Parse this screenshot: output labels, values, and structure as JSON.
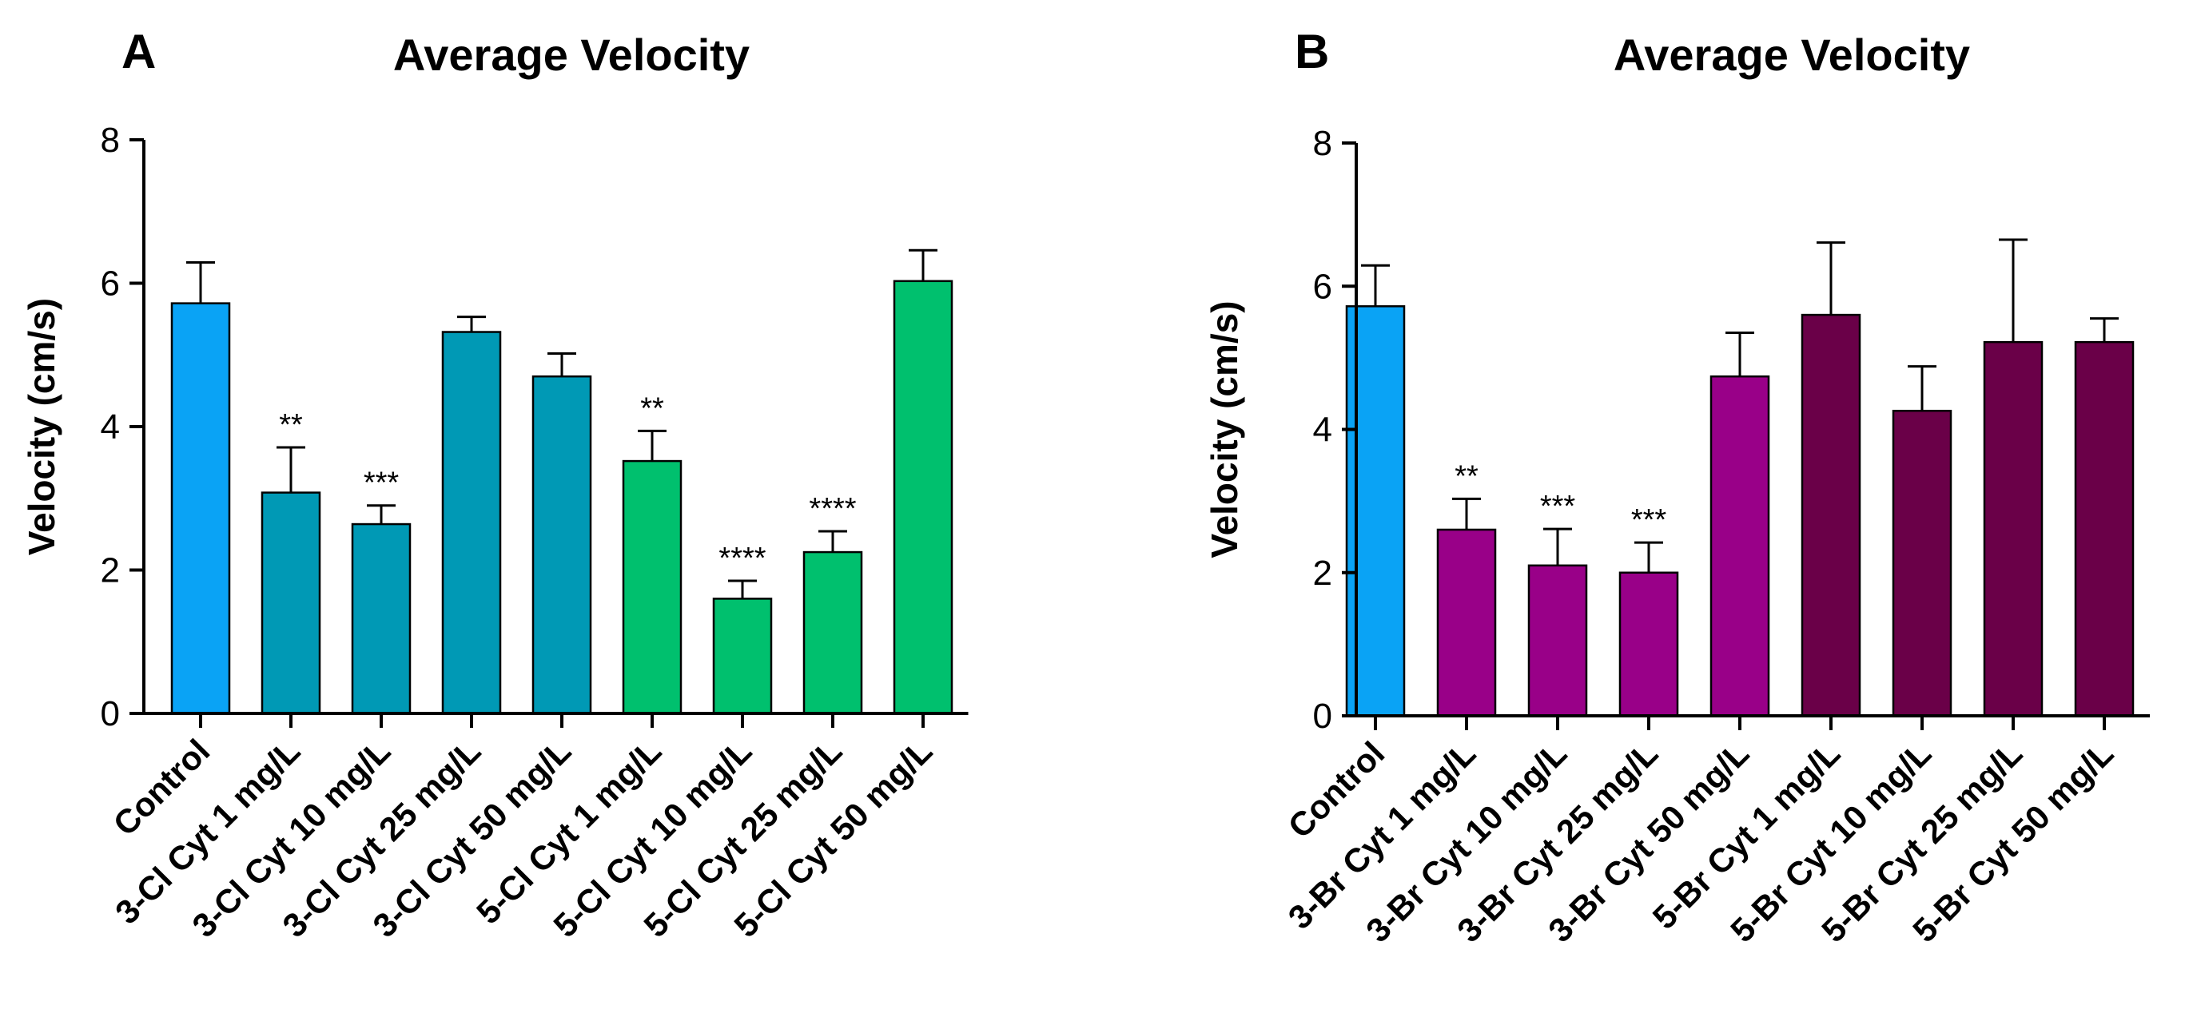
{
  "chart_data": [
    {
      "panel": "A",
      "type": "bar",
      "title": "Average Velocity",
      "xlabel": "",
      "ylabel": "Velocity (cm/s)",
      "ylim": [
        0,
        8
      ],
      "yticks": [
        "0",
        "2",
        "4",
        "6",
        "8"
      ],
      "grid": false,
      "categories": [
        "Control",
        "3-Cl Cyt 1 mg/L",
        "3-Cl Cyt 10 mg/L",
        "3-Cl Cyt 25 mg/L",
        "3-Cl Cyt 50 mg/L",
        "5-Cl Cyt 1 mg/L",
        "5-Cl Cyt 10 mg/L",
        "5-Cl Cyt 25 mg/L",
        "5-Cl Cyt 50 mg/L"
      ],
      "values": [
        5.72,
        3.08,
        2.64,
        5.32,
        4.7,
        3.52,
        1.6,
        2.25,
        6.03
      ],
      "errors": [
        0.57,
        0.63,
        0.26,
        0.21,
        0.32,
        0.42,
        0.25,
        0.29,
        0.43
      ],
      "significance": [
        "",
        "**",
        "***",
        "",
        "",
        "**",
        "****",
        "****",
        ""
      ],
      "colors": [
        "#0aa3f5",
        "#0099b5",
        "#0099b5",
        "#0099b5",
        "#0099b5",
        "#00c06e",
        "#00c06e",
        "#00c06e",
        "#00c06e"
      ]
    },
    {
      "panel": "B",
      "type": "bar",
      "title": "Average Velocity",
      "xlabel": "",
      "ylabel": "Velocity (cm/s)",
      "ylim": [
        0,
        8
      ],
      "yticks": [
        "0",
        "2",
        "4",
        "6",
        "8"
      ],
      "grid": false,
      "categories": [
        "Control",
        "3-Br Cyt 1 mg/L",
        "3-Br Cyt 10 mg/L",
        "3-Br Cyt 25 mg/L",
        "3-Br Cyt 50 mg/L",
        "5-Br Cyt 1 mg/L",
        "5-Br Cyt 10 mg/L",
        "5-Br Cyt 25 mg/L",
        "5-Br Cyt 50 mg/L"
      ],
      "values": [
        5.72,
        2.6,
        2.1,
        2.0,
        4.74,
        5.6,
        4.26,
        5.22,
        5.22
      ],
      "errors": [
        0.57,
        0.43,
        0.51,
        0.42,
        0.61,
        1.01,
        0.62,
        1.43,
        0.33
      ],
      "significance": [
        "",
        "**",
        "***",
        "***",
        "",
        "",
        "",
        "",
        ""
      ],
      "colors": [
        "#0aa3f5",
        "#990088",
        "#990088",
        "#990088",
        "#990088",
        "#6a0048",
        "#6a0048",
        "#6a0048",
        "#6a0048"
      ]
    }
  ]
}
